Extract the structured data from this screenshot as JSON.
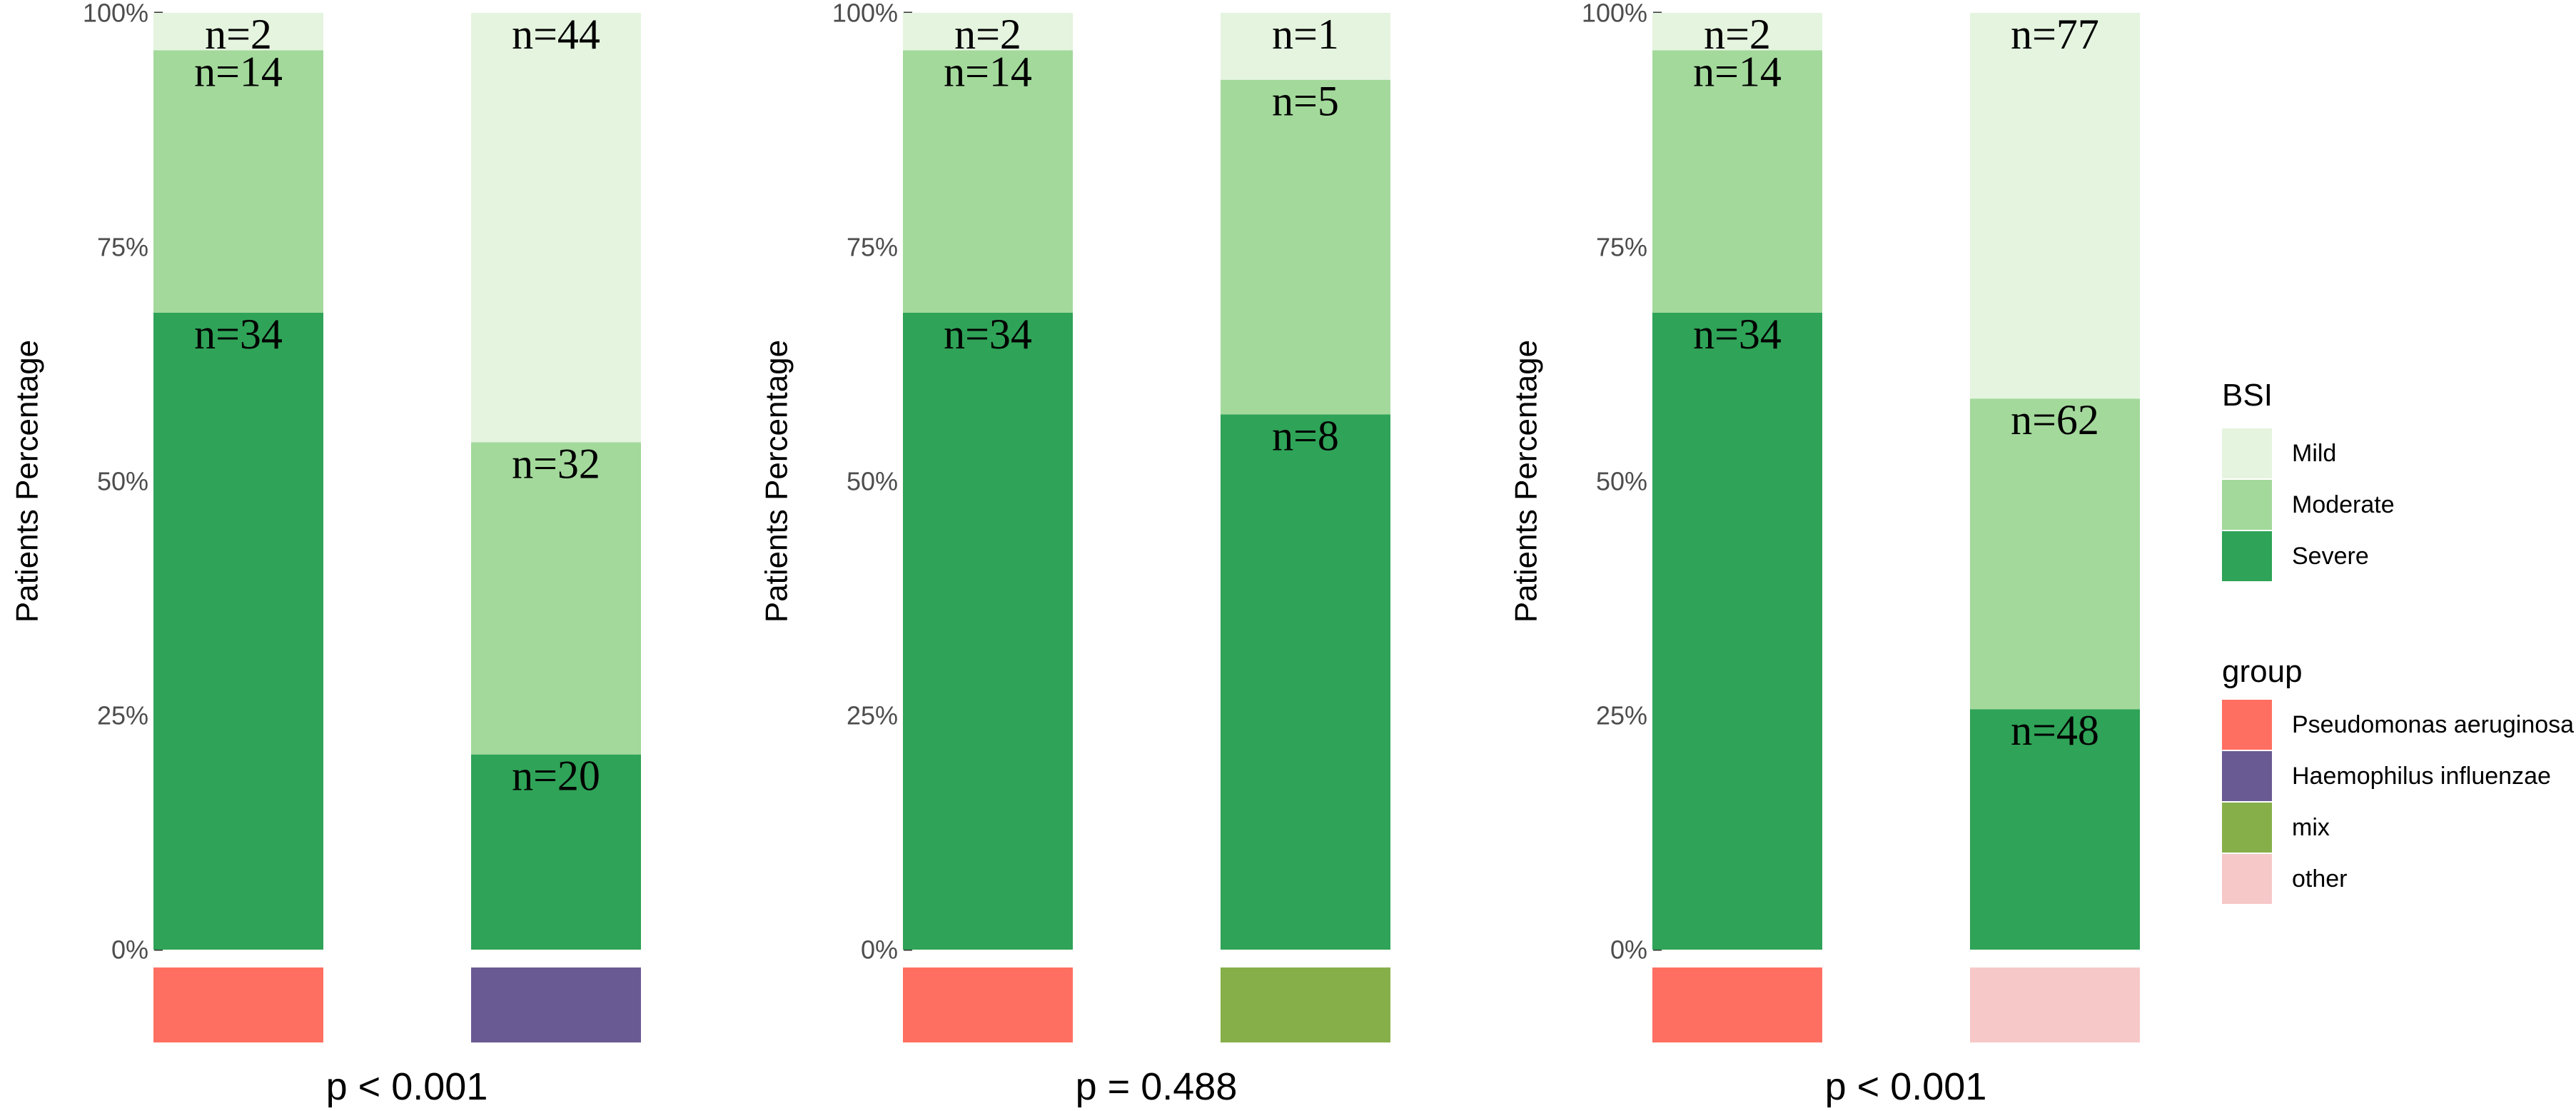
{
  "chart_data": {
    "type": "bar",
    "stacked": true,
    "normalized": true,
    "y_axis": {
      "label": "Patients Percentage",
      "ticks": [
        "0%",
        "25%",
        "50%",
        "75%",
        "100%"
      ],
      "ylim": [
        0,
        1
      ]
    },
    "grid": false,
    "legend_placement": "right",
    "severity_levels": [
      "Severe",
      "Moderate",
      "Mild"
    ],
    "severity_colors": {
      "Severe": "#2fa357",
      "Moderate": "#a3d99b",
      "Mild": "#e4f4df"
    },
    "group_colors": {
      "Pseudomonas aeruginosa": "#ff6f61",
      "Haemophilus influenzae": "#6a5a93",
      "mix": "#86af4a",
      "other": "#f6c8c8"
    },
    "panels": [
      {
        "p_value": "p < 0.001",
        "bars": [
          {
            "group": "Pseudomonas aeruginosa",
            "counts": {
              "Severe": 34,
              "Moderate": 14,
              "Mild": 2
            },
            "labels": {
              "Severe": "n=34",
              "Moderate": "n=14",
              "Mild": "n=2"
            }
          },
          {
            "group": "Haemophilus influenzae",
            "counts": {
              "Severe": 20,
              "Moderate": 32,
              "Mild": 44
            },
            "labels": {
              "Severe": "n=20",
              "Moderate": "n=32",
              "Mild": "n=44"
            }
          }
        ]
      },
      {
        "p_value": "p = 0.488",
        "bars": [
          {
            "group": "Pseudomonas aeruginosa",
            "counts": {
              "Severe": 34,
              "Moderate": 14,
              "Mild": 2
            },
            "labels": {
              "Severe": "n=34",
              "Moderate": "n=14",
              "Mild": "n=2"
            }
          },
          {
            "group": "mix",
            "counts": {
              "Severe": 8,
              "Moderate": 5,
              "Mild": 1
            },
            "labels": {
              "Severe": "n=8",
              "Moderate": "n=5",
              "Mild": "n=1"
            }
          }
        ]
      },
      {
        "p_value": "p < 0.001",
        "bars": [
          {
            "group": "Pseudomonas aeruginosa",
            "counts": {
              "Severe": 34,
              "Moderate": 14,
              "Mild": 2
            },
            "labels": {
              "Severe": "n=34",
              "Moderate": "n=14",
              "Mild": "n=2"
            }
          },
          {
            "group": "other",
            "counts": {
              "Severe": 48,
              "Moderate": 62,
              "Mild": 77
            },
            "labels": {
              "Severe": "n=48",
              "Moderate": "n=62",
              "Mild": "n=77"
            }
          }
        ]
      }
    ],
    "legend": {
      "bsi": {
        "title": "BSI",
        "items": [
          {
            "label": "Mild",
            "color": "#e4f4df"
          },
          {
            "label": "Moderate",
            "color": "#a3d99b"
          },
          {
            "label": "Severe",
            "color": "#2fa357"
          }
        ]
      },
      "group": {
        "title": "group",
        "items": [
          {
            "label": "Pseudomonas aeruginosa",
            "color": "#ff6f61"
          },
          {
            "label": "Haemophilus influenzae",
            "color": "#6a5a93"
          },
          {
            "label": "mix",
            "color": "#86af4a"
          },
          {
            "label": "other",
            "color": "#f6c8c8"
          }
        ]
      }
    }
  }
}
